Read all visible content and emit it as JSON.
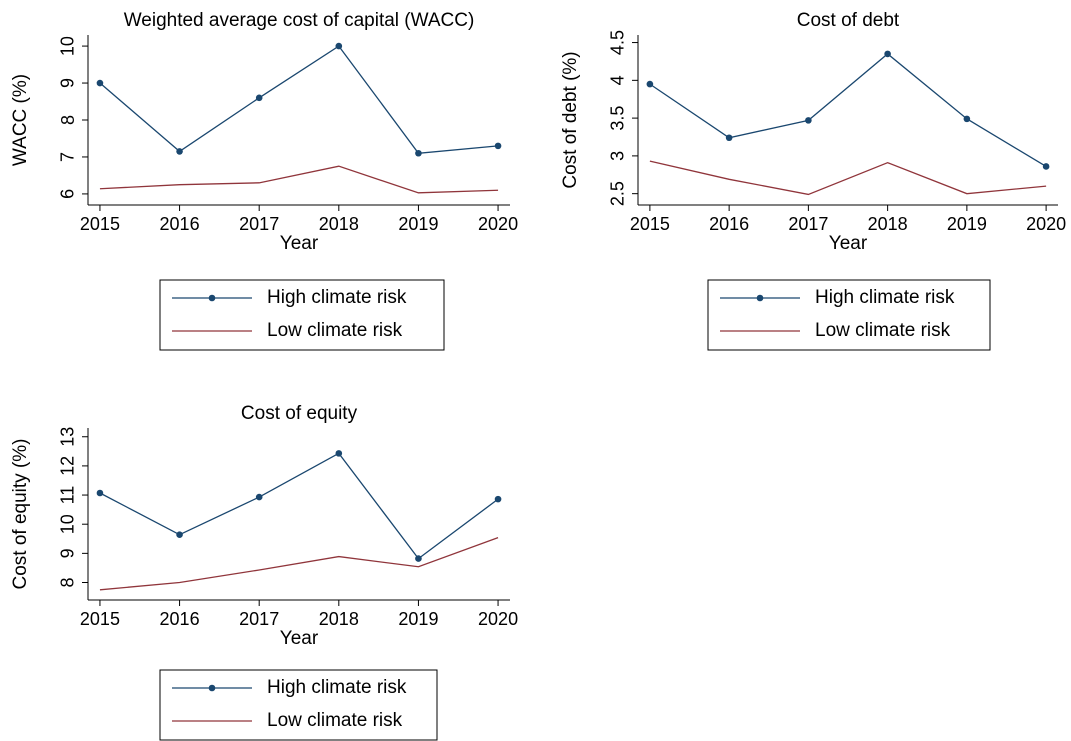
{
  "chart_data": [
    {
      "type": "line",
      "title": "Weighted average cost of capital (WACC)",
      "x_label": "Year",
      "y_label": "WACC (%)",
      "x": [
        2015,
        2016,
        2017,
        2018,
        2019,
        2020
      ],
      "xlim": [
        2014.85,
        2020.15
      ],
      "xticks": [
        2015,
        2016,
        2017,
        2018,
        2019,
        2020
      ],
      "ylim": [
        5.7,
        10.3
      ],
      "yticks": [
        6,
        7,
        8,
        9,
        10
      ],
      "series": [
        {
          "name": "High climate risk",
          "color": "#1a476f",
          "markers": true,
          "values": [
            9.0,
            7.15,
            8.6,
            10.0,
            7.1,
            7.3
          ]
        },
        {
          "name": "Low climate risk",
          "color": "#90353b",
          "markers": false,
          "values": [
            6.14,
            6.25,
            6.3,
            6.75,
            6.03,
            6.1
          ]
        }
      ]
    },
    {
      "type": "line",
      "title": "Cost of debt",
      "x_label": "Year",
      "y_label": "Cost of debt (%)",
      "x": [
        2015,
        2016,
        2017,
        2018,
        2019,
        2020
      ],
      "xlim": [
        2014.85,
        2020.15
      ],
      "xticks": [
        2015,
        2016,
        2017,
        2018,
        2019,
        2020
      ],
      "ylim": [
        2.35,
        4.6
      ],
      "yticks": [
        2.5,
        3,
        3.5,
        4,
        4.5
      ],
      "series": [
        {
          "name": "High climate risk",
          "color": "#1a476f",
          "markers": true,
          "values": [
            3.95,
            3.24,
            3.47,
            4.35,
            3.49,
            2.86
          ]
        },
        {
          "name": "Low climate risk",
          "color": "#90353b",
          "markers": false,
          "values": [
            2.93,
            2.69,
            2.49,
            2.91,
            2.5,
            2.6
          ]
        }
      ]
    },
    {
      "type": "line",
      "title": "Cost of equity",
      "x_label": "Year",
      "y_label": "Cost of equity (%)",
      "x": [
        2015,
        2016,
        2017,
        2018,
        2019,
        2020
      ],
      "xlim": [
        2014.85,
        2020.15
      ],
      "xticks": [
        2015,
        2016,
        2017,
        2018,
        2019,
        2020
      ],
      "ylim": [
        7.4,
        13.3
      ],
      "yticks": [
        8,
        9,
        10,
        11,
        12,
        13
      ],
      "series": [
        {
          "name": "High climate risk",
          "color": "#1a476f",
          "markers": true,
          "values": [
            11.07,
            9.64,
            10.93,
            12.43,
            8.82,
            10.86
          ]
        },
        {
          "name": "Low climate risk",
          "color": "#90353b",
          "markers": false,
          "values": [
            7.75,
            8.0,
            8.43,
            8.89,
            8.54,
            9.54
          ]
        }
      ]
    }
  ]
}
